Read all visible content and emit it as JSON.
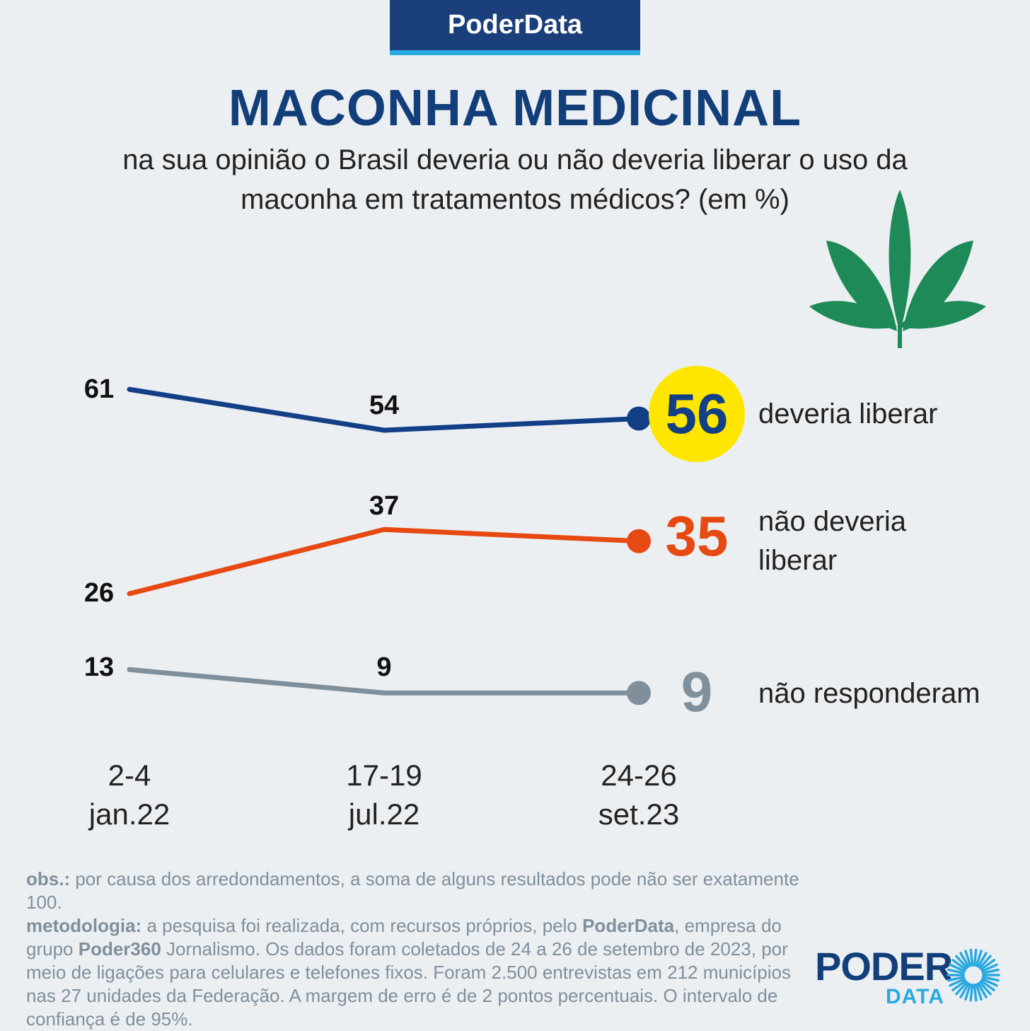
{
  "brand": {
    "label": "PoderData"
  },
  "title": "MACONHA MEDICINAL",
  "subtitle": "na sua opinião o Brasil deveria ou não deveria liberar o uso da maconha em tratamentos médicos? (em %)",
  "chart_data": {
    "type": "line",
    "categories": [
      "2-4 jan.22",
      "17-19 jul.22",
      "24-26 set.23"
    ],
    "category_lines": [
      [
        "2-4",
        "jan.22"
      ],
      [
        "17-19",
        "jul.22"
      ],
      [
        "24-26",
        "set.23"
      ]
    ],
    "series": [
      {
        "name": "deveria liberar",
        "name_lines": [
          "deveria liberar"
        ],
        "values": [
          61,
          54,
          56
        ],
        "color": "#123f86",
        "highlight": "#ffe600"
      },
      {
        "name": "não deveria liberar",
        "name_lines": [
          "não deveria",
          "liberar"
        ],
        "values": [
          26,
          37,
          35
        ],
        "color": "#e64a12"
      },
      {
        "name": "não responderam",
        "name_lines": [
          "não responderam"
        ],
        "values": [
          13,
          9,
          9
        ],
        "color": "#7f909c"
      }
    ]
  },
  "leaf_icon": "cannabis-leaf-icon",
  "colors": {
    "background": "#eceff2",
    "brand": "#1b3f7a",
    "accent": "#2aa9e0",
    "title": "#123f7a"
  },
  "notes": {
    "obs_label": "obs.:",
    "obs_text": " por causa dos arredondamentos, a soma de alguns resultados pode não ser exatamente 100.",
    "method_label": "metodologia:",
    "method_text_1": " a pesquisa foi realizada, com recursos próprios, pelo ",
    "method_org": "PoderData",
    "method_text_2": ", empresa do grupo ",
    "method_group": "Poder360",
    "method_text_3": " Jornalismo. Os dados foram coletados de 24 a 26 de setembro de 2023, por meio de ligações para celulares e telefones fixos. Foram 2.500 entrevistas em 212 municípios nas 27 unidades da Federação. A margem de erro é de 2 pontos percentuais. O intervalo de confiança é de 95%."
  },
  "logo": {
    "word1": "PODER",
    "word2": "DATA"
  }
}
